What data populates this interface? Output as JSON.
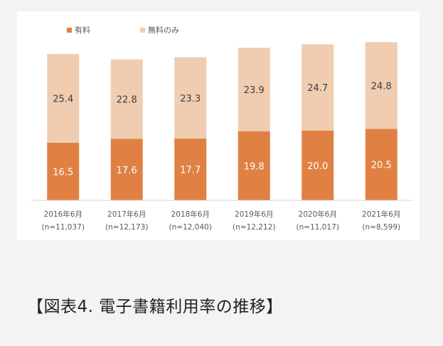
{
  "colors": {
    "paid": "#e08143",
    "free": "#f0ccb0",
    "axis": "#d9d9d9",
    "tick_text": "#595959",
    "value_text": "#404040"
  },
  "legend": {
    "paid_label": "有料",
    "free_label": "無料のみ"
  },
  "chart_data": {
    "type": "bar",
    "stacked": true,
    "categories": [
      "2016年6月",
      "2017年6月",
      "2018年6月",
      "2019年6月",
      "2020年6月",
      "2021年6月"
    ],
    "sample_sizes": [
      "(n=11,037)",
      "(n=12,173)",
      "(n=12,040)",
      "(n=12,212)",
      "(n=11,017)",
      "(n=8,599)"
    ],
    "series": [
      {
        "name": "有料",
        "values": [
          16.5,
          17.6,
          17.7,
          19.8,
          20.0,
          20.5
        ]
      },
      {
        "name": "無料のみ",
        "values": [
          25.4,
          22.8,
          23.3,
          23.9,
          24.7,
          24.8
        ]
      }
    ],
    "ylim": [
      0,
      46
    ],
    "legend_position": "top-left",
    "grid": false
  },
  "caption": "【図表4. 電子書籍利用率の推移】"
}
